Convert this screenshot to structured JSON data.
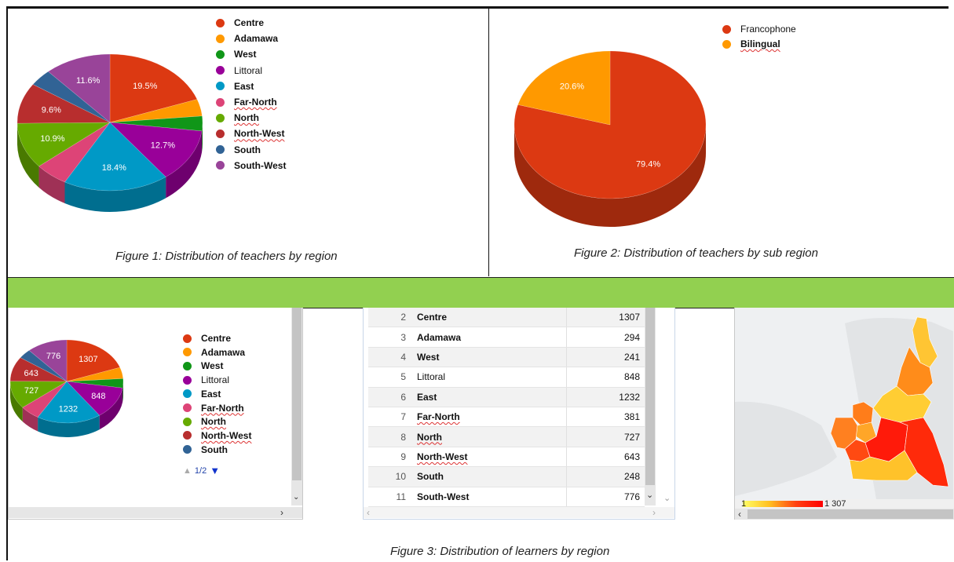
{
  "colors": {
    "Centre": "#dc3912",
    "Adamawa": "#ff9900",
    "West": "#109618",
    "Littoral": "#990099",
    "East": "#0099c6",
    "Far-North": "#dd4477",
    "North": "#66aa00",
    "North-West": "#b82e2e",
    "South": "#316395",
    "South-West": "#994499",
    "Francophone": "#dc3912",
    "Bilingual": "#ff9900"
  },
  "captions": {
    "fig1": "Figure 1: Distribution of teachers by region",
    "fig2": "Figure 2: Distribution of teachers by sub region",
    "fig3": "Figure 3: Distribution of learners by region"
  },
  "pager": {
    "text": "1/2",
    "prev_icon": "triangle-up-icon",
    "next_icon": "triangle-down-icon"
  },
  "map_scale": {
    "min_label": "1",
    "max_label": "1 307"
  },
  "chart_data": [
    {
      "type": "pie",
      "id": "fig1",
      "title": "",
      "categories": [
        "Centre",
        "Adamawa",
        "West",
        "Littoral",
        "East",
        "Far-North",
        "North",
        "North-West",
        "South",
        "South-West"
      ],
      "values": [
        19.5,
        4.0,
        3.5,
        12.7,
        18.4,
        5.8,
        10.9,
        9.6,
        4.0,
        11.6
      ],
      "data_labels": [
        "19.5%",
        "",
        "",
        "12.7%",
        "18.4%",
        "",
        "10.9%",
        "9.6%",
        "",
        "11.6%"
      ],
      "legend": [
        "Centre",
        "Adamawa",
        "West",
        "Littoral",
        "East",
        "Far-North",
        "North",
        "North-West",
        "South",
        "South-West"
      ],
      "legend_position": "right"
    },
    {
      "type": "pie",
      "id": "fig2",
      "title": "",
      "categories": [
        "Francophone",
        "Bilingual"
      ],
      "values": [
        79.4,
        20.6
      ],
      "data_labels": [
        "79.4%",
        "20.6%"
      ],
      "legend": [
        "Francophone",
        "Bilingual"
      ],
      "legend_position": "top-right"
    },
    {
      "type": "pie",
      "id": "fig3-pie",
      "title": "",
      "categories": [
        "Centre",
        "Adamawa",
        "West",
        "Littoral",
        "East",
        "Far-North",
        "North",
        "North-West",
        "South",
        "South-West"
      ],
      "values": [
        1307,
        294,
        241,
        848,
        1232,
        381,
        727,
        643,
        248,
        776
      ],
      "data_labels": [
        "1307",
        "",
        "",
        "848",
        "1232",
        "",
        "727",
        "643",
        "",
        "776"
      ],
      "legend": [
        "Centre",
        "Adamawa",
        "West",
        "Littoral",
        "East",
        "Far-North",
        "North",
        "North-West",
        "South"
      ],
      "legend_position": "right"
    },
    {
      "type": "table",
      "id": "fig3-table",
      "rows": [
        {
          "index": "2",
          "region": "Centre",
          "value": "1307"
        },
        {
          "index": "3",
          "region": "Adamawa",
          "value": "294"
        },
        {
          "index": "4",
          "region": "West",
          "value": "241"
        },
        {
          "index": "5",
          "region": "Littoral",
          "value": "848"
        },
        {
          "index": "6",
          "region": "East",
          "value": "1232"
        },
        {
          "index": "7",
          "region": "Far-North",
          "value": "381"
        },
        {
          "index": "8",
          "region": "North",
          "value": "727"
        },
        {
          "index": "9",
          "region": "North-West",
          "value": "643"
        },
        {
          "index": "10",
          "region": "South",
          "value": "248"
        },
        {
          "index": "11",
          "region": "South-West",
          "value": "776"
        }
      ]
    }
  ]
}
